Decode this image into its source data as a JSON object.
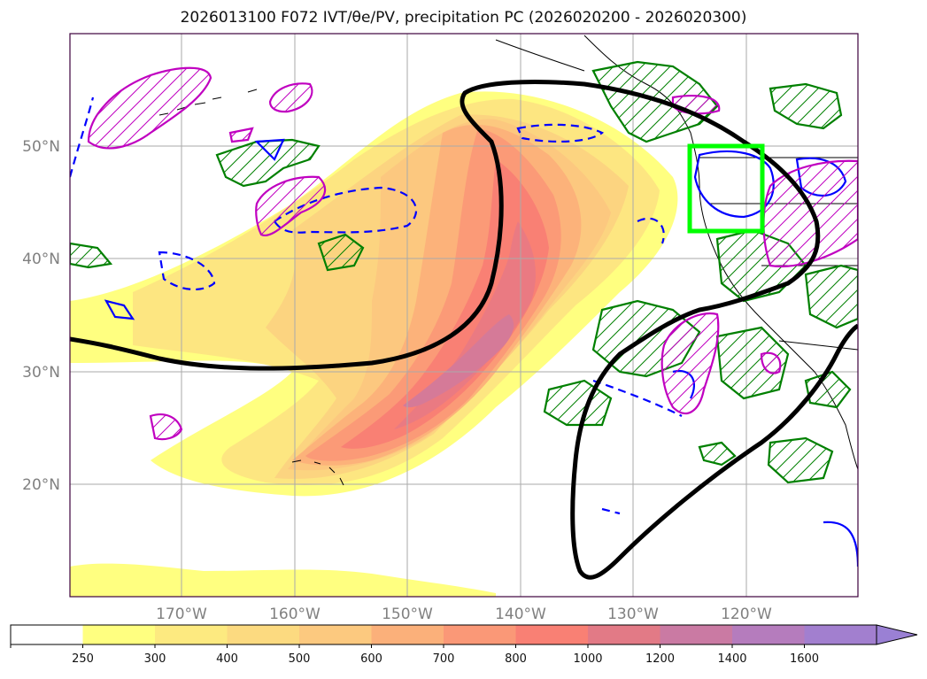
{
  "title": "2026013100 F072 IVT/θe/PV, precipitation PC (2026020200 - 2026020300)",
  "map": {
    "lat_labels": [
      "50°N",
      "40°N",
      "30°N",
      "20°N"
    ],
    "lon_labels": [
      "170°W",
      "160°W",
      "150°W",
      "140°W",
      "130°W",
      "120°W"
    ],
    "colors": {
      "ivt_levels": [
        "#ffff80",
        "#fde681",
        "#fcd480",
        "#fcc87f",
        "#fcb27a",
        "#fb9a77",
        "#f98074",
        "#ea7a82",
        "#d57a98",
        "#bd7bb3",
        "#a87fc9"
      ],
      "green": "#008000",
      "blue": "#0000ff",
      "magenta": "#c000c0",
      "black": "#000000",
      "box": "#00ff00"
    }
  },
  "colorbar": {
    "labels": [
      "250",
      "300",
      "400",
      "500",
      "600",
      "700",
      "800",
      "1000",
      "1200",
      "1400",
      "1600"
    ],
    "colors": [
      "#ffffff",
      "#ffff80",
      "#fdea80",
      "#fcda80",
      "#fcc97f",
      "#fbb07a",
      "#fa9877",
      "#f98074",
      "#e27a86",
      "#ca7aa3",
      "#b57cbd",
      "#a27fcf"
    ],
    "extend": "max"
  }
}
